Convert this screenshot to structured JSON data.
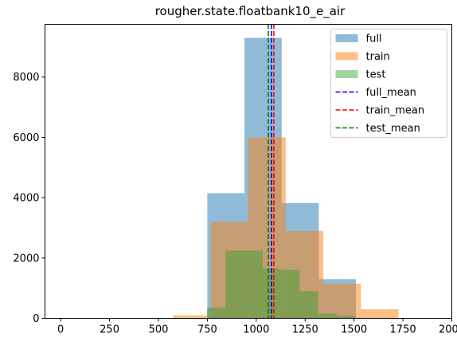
{
  "chart_data": {
    "type": "bar",
    "title": "rougher.state.floatbank10_e_air",
    "xlabel": "",
    "ylabel": "",
    "xlim": [
      -80,
      2000
    ],
    "ylim": [
      0,
      9750
    ],
    "xticks": [
      0,
      250,
      500,
      750,
      1000,
      1250,
      1500,
      1750,
      2000
    ],
    "yticks": [
      0,
      2000,
      4000,
      6000,
      8000
    ],
    "legend_position": "top-right",
    "series": [
      {
        "name": "full",
        "kind": "histogram",
        "color": "#1f77b4",
        "opacity": 0.5,
        "bins": [
          {
            "x0": 750,
            "x1": 940,
            "count": 4150
          },
          {
            "x0": 940,
            "x1": 1130,
            "count": 9300
          },
          {
            "x0": 1130,
            "x1": 1320,
            "count": 3820
          },
          {
            "x0": 1320,
            "x1": 1510,
            "count": 1300
          }
        ]
      },
      {
        "name": "train",
        "kind": "histogram",
        "color": "#ff7f0e",
        "opacity": 0.5,
        "bins": [
          {
            "x0": 575,
            "x1": 767,
            "count": 100
          },
          {
            "x0": 767,
            "x1": 959,
            "count": 3200
          },
          {
            "x0": 959,
            "x1": 1151,
            "count": 6000
          },
          {
            "x0": 1151,
            "x1": 1343,
            "count": 2900
          },
          {
            "x0": 1343,
            "x1": 1535,
            "count": 1150
          },
          {
            "x0": 1535,
            "x1": 1727,
            "count": 300
          }
        ]
      },
      {
        "name": "test",
        "kind": "histogram",
        "color": "#2ca02c",
        "opacity": 0.45,
        "bins": [
          {
            "x0": 748,
            "x1": 843,
            "count": 350
          },
          {
            "x0": 843,
            "x1": 1033,
            "count": 2250
          },
          {
            "x0": 1033,
            "x1": 1128,
            "count": 1650
          },
          {
            "x0": 1128,
            "x1": 1222,
            "count": 1600
          },
          {
            "x0": 1222,
            "x1": 1317,
            "count": 900
          },
          {
            "x0": 1317,
            "x1": 1412,
            "count": 160
          },
          {
            "x0": 1412,
            "x1": 1507,
            "count": 70
          }
        ]
      },
      {
        "name": "full_mean",
        "kind": "vline",
        "color": "#0000ff",
        "dash": true,
        "x": 1078
      },
      {
        "name": "train_mean",
        "kind": "vline",
        "color": "#ff0000",
        "dash": true,
        "x": 1090
      },
      {
        "name": "test_mean",
        "kind": "vline",
        "color": "#008000",
        "dash": true,
        "x": 1062
      }
    ]
  }
}
